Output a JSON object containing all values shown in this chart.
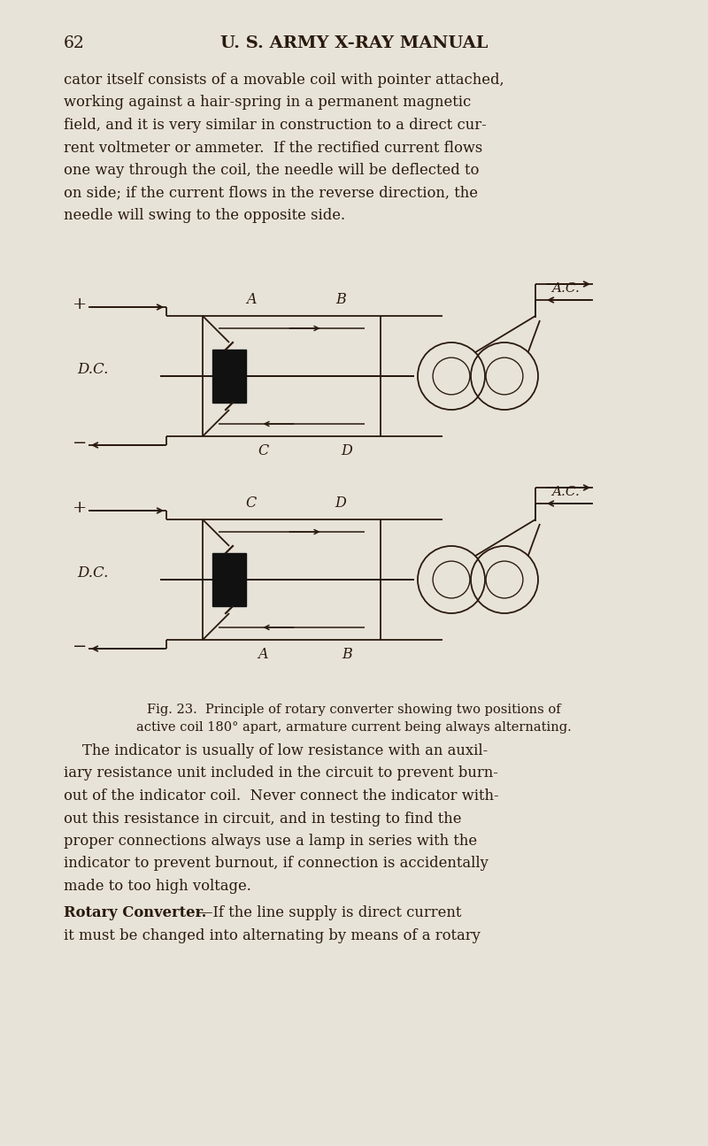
{
  "bg_color": "#e8e3d8",
  "text_color": "#2a1a0e",
  "page_number": "62",
  "header": "U. S. ARMY X-RAY MANUAL",
  "para1_lines": [
    "cator itself consists of a movable coil with pointer attached,",
    "working against a hair-spring in a permanent magnetic",
    "field, and it is very similar in construction to a direct cur-",
    "rent voltmeter or ammeter.  If the rectified current flows",
    "one way through the coil, the needle will be deflected to",
    "on side; if the current flows in the reverse direction, the",
    "needle will swing to the opposite side."
  ],
  "para2_lines": [
    "    The indicator is usually of low resistance with an auxil-",
    "iary resistance unit included in the circuit to prevent burn-",
    "out of the indicator coil.  Never connect the indicator with-",
    "out this resistance in circuit, and in testing to find the",
    "proper connections always use a lamp in series with the",
    "indicator to prevent burnout, if connection is accidentally",
    "made to too high voltage."
  ],
  "para3_bold": "Rotary Converter.",
  "para3_rest": "—If the line supply is direct current",
  "para3_line2": "it must be changed into alternating by means of a rotary",
  "fig_caption_line1": "Fig. 23.  Principle of rotary converter showing two positions of",
  "fig_caption_line2": "active coil 180° apart, armature current being always alternating.",
  "lw": 1.3
}
